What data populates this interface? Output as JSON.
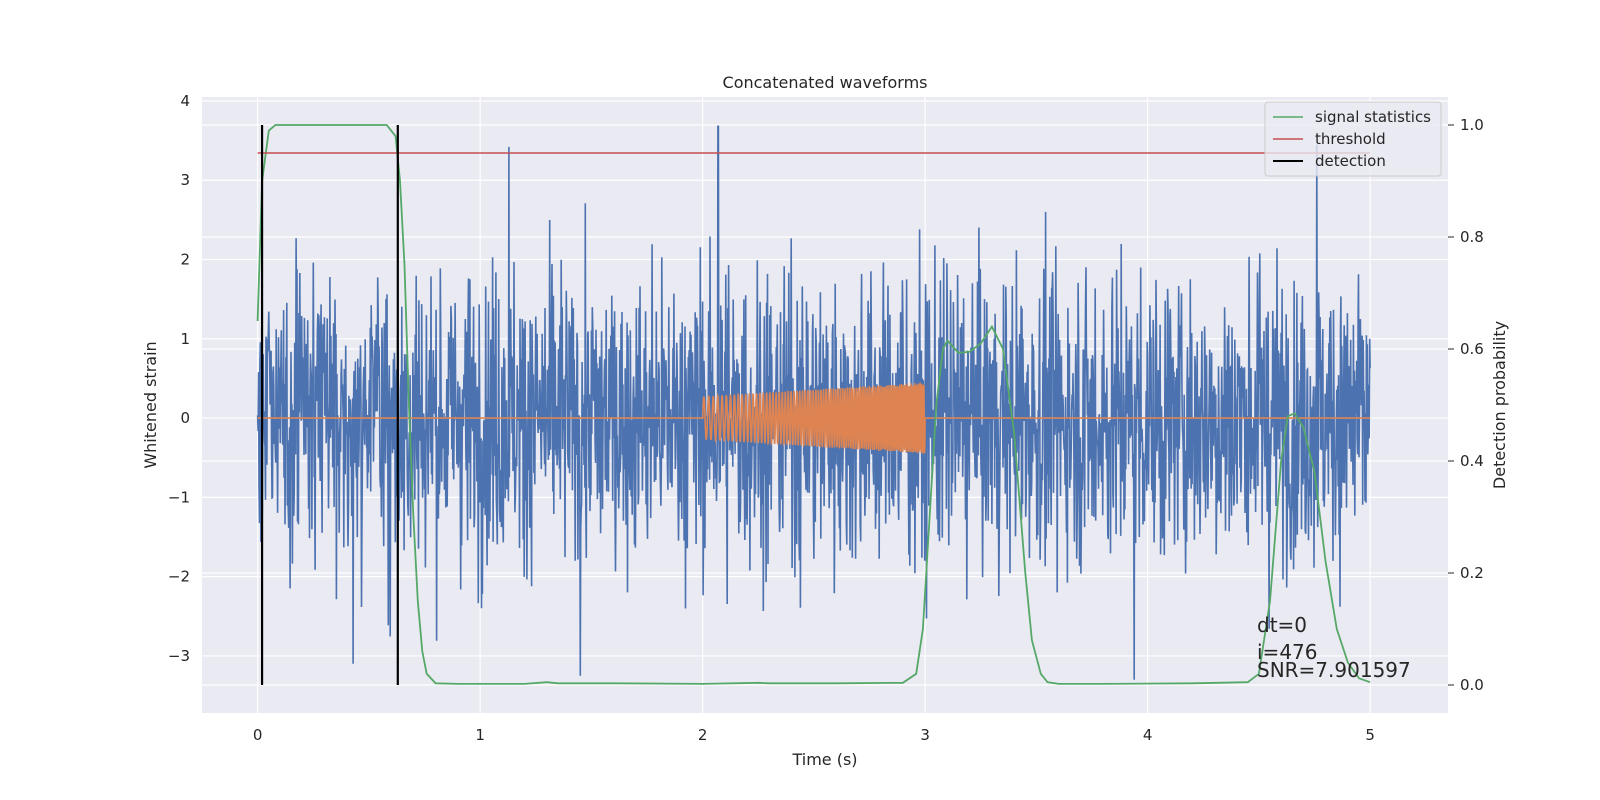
{
  "chart_data": {
    "type": "line",
    "title": "Concatenated waveforms",
    "xlabel": "Time (s)",
    "ylabel": "Whitened strain",
    "y2label": "Detection probability",
    "xlim": [
      -0.25,
      5.35
    ],
    "ylim": [
      -3.72,
      4.05
    ],
    "y2lim": [
      -0.05,
      1.05
    ],
    "x_ticks": [
      0,
      1,
      2,
      3,
      4,
      5
    ],
    "x_tick_labels": [
      "0",
      "1",
      "2",
      "3",
      "4",
      "5"
    ],
    "y_ticks": [
      -3,
      -2,
      -1,
      0,
      1,
      2,
      3,
      4
    ],
    "y_tick_labels": [
      "−3",
      "−2",
      "−1",
      "0",
      "1",
      "2",
      "3",
      "4"
    ],
    "y2_ticks": [
      0.0,
      0.2,
      0.4,
      0.6,
      0.8,
      1.0
    ],
    "y2_tick_labels": [
      "0.0",
      "0.2",
      "0.4",
      "0.6",
      "0.8",
      "1.0"
    ],
    "grid": true,
    "legend_position": "top-right",
    "colors": {
      "background": "#eaeaf2",
      "grid": "#ffffff",
      "noise": "#4c72b0",
      "template": "#dd8452",
      "statistics": "#55a868",
      "threshold": "#c44e52",
      "detection": "#000000"
    },
    "series": [
      {
        "name": "",
        "axis": "left",
        "description_values": "whitened noisy strain, roughly gaussian with std ~0.9, spanning 0 to 5 s",
        "x_range": [
          0,
          5
        ],
        "std": 0.9,
        "peaks": [
          [
            2.07,
            3.68
          ],
          [
            1.13,
            3.42
          ],
          [
            4.76,
            3.45
          ],
          [
            1.45,
            -3.25
          ],
          [
            3.94,
            -3.3
          ],
          [
            0.43,
            -3.1
          ]
        ]
      },
      {
        "name": "",
        "axis": "left",
        "x": [
          0,
          2.0,
          2.0,
          3.0,
          3.0,
          5.0
        ],
        "amplitude": [
          0,
          0,
          0.27,
          0.45,
          0,
          0
        ],
        "chirp_window": [
          2.0,
          3.0
        ]
      },
      {
        "name": "signal statistics",
        "axis": "right",
        "x": [
          0.0,
          0.02,
          0.05,
          0.08,
          0.12,
          0.3,
          0.5,
          0.58,
          0.62,
          0.64,
          0.66,
          0.68,
          0.7,
          0.72,
          0.74,
          0.76,
          0.8,
          0.9,
          1.2,
          1.3,
          1.35,
          1.6,
          2.0,
          2.25,
          2.3,
          2.6,
          2.9,
          2.96,
          2.99,
          3.02,
          3.05,
          3.08,
          3.1,
          3.15,
          3.2,
          3.25,
          3.3,
          3.35,
          3.4,
          3.45,
          3.48,
          3.52,
          3.55,
          3.6,
          3.8,
          4.2,
          4.45,
          4.5,
          4.55,
          4.6,
          4.63,
          4.66,
          4.7,
          4.75,
          4.8,
          4.85,
          4.9,
          4.95,
          5.0
        ],
        "y": [
          0.65,
          0.9,
          0.99,
          1.0,
          1.0,
          1.0,
          1.0,
          1.0,
          0.98,
          0.9,
          0.75,
          0.5,
          0.3,
          0.15,
          0.06,
          0.02,
          0.003,
          0.002,
          0.002,
          0.005,
          0.003,
          0.003,
          0.002,
          0.004,
          0.003,
          0.003,
          0.004,
          0.02,
          0.1,
          0.3,
          0.5,
          0.6,
          0.615,
          0.593,
          0.595,
          0.61,
          0.64,
          0.6,
          0.45,
          0.2,
          0.08,
          0.02,
          0.005,
          0.002,
          0.002,
          0.003,
          0.005,
          0.02,
          0.15,
          0.4,
          0.48,
          0.485,
          0.46,
          0.38,
          0.22,
          0.1,
          0.04,
          0.012,
          0.005
        ]
      },
      {
        "name": "threshold",
        "axis": "right",
        "x": [
          0,
          5
        ],
        "y": [
          0.95,
          0.95
        ]
      },
      {
        "name": "detection",
        "axis": "right",
        "vertical_lines_x": [
          0.02,
          0.63
        ],
        "y_span": [
          0.0,
          1.0
        ]
      }
    ],
    "annotations": [
      "dt=0",
      "i=476",
      "SNR=7.901597"
    ]
  }
}
